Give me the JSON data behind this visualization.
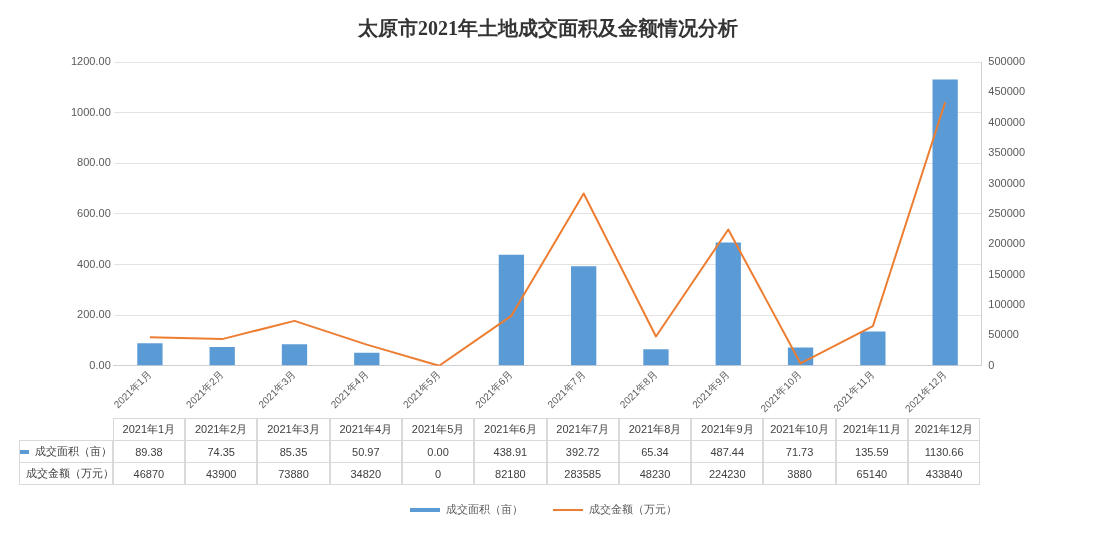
{
  "chart_data": {
    "type": "bar",
    "title": "太原市2021年土地成交面积及金额情况分析",
    "categories": [
      "2021年1月",
      "2021年2月",
      "2021年3月",
      "2021年4月",
      "2021年5月",
      "2021年6月",
      "2021年7月",
      "2021年8月",
      "2021年9月",
      "2021年10月",
      "2021年11月",
      "2021年12月"
    ],
    "series": [
      {
        "name": "成交面积（亩）",
        "color": "#5b9bd5",
        "values": [
          89.38,
          74.35,
          85.35,
          50.97,
          0,
          438.91,
          392.72,
          65.34,
          487.44,
          71.73,
          135.59,
          1130.66
        ],
        "value_labels": [
          "89.38",
          "74.35",
          "85.35",
          "50.97",
          "0.00",
          "438.91",
          "392.72",
          "65.34",
          "487.44",
          "71.73",
          "135.59",
          "1130.66"
        ]
      },
      {
        "name": "成交金额（万元）",
        "type": "line",
        "axis": "y2",
        "color": "#ed7d31",
        "marker": "none",
        "line_style": "solid",
        "values": [
          46870,
          43900,
          73880,
          34820,
          0,
          82180,
          283585,
          48230,
          224230,
          3880,
          65140,
          433840
        ],
        "value_labels": [
          "46870",
          "43900",
          "73880",
          "34820",
          "0",
          "82180",
          "283585",
          "48230",
          "224230",
          "3880",
          "65140",
          "433840"
        ]
      }
    ],
    "ylim": [
      0,
      1200
    ],
    "yticks": [
      {
        "value": 0,
        "label": "0.00"
      },
      {
        "value": 200,
        "label": "200.00"
      },
      {
        "value": 400,
        "label": "400.00"
      },
      {
        "value": 600,
        "label": "600.00"
      },
      {
        "value": 800,
        "label": "800.00"
      },
      {
        "value": 1000,
        "label": "1000.00"
      },
      {
        "value": 1200,
        "label": "1200.00"
      }
    ],
    "y2lim": [
      0,
      500000
    ],
    "y2ticks": [
      0,
      50000,
      100000,
      150000,
      200000,
      250000,
      300000,
      350000,
      400000,
      450000,
      500000
    ],
    "grid": "y",
    "legend": "bottom"
  }
}
